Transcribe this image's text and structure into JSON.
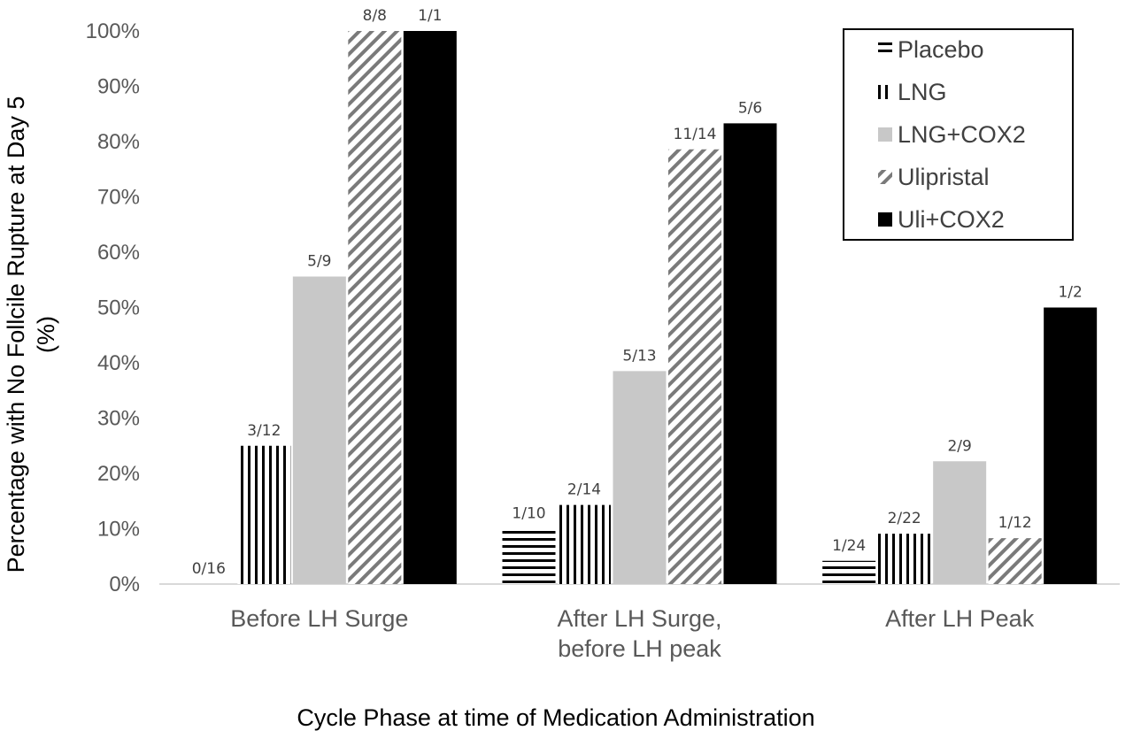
{
  "chart_data": {
    "type": "bar",
    "title": "",
    "xlabel": "Cycle Phase at time of Medication Administration",
    "ylabel_lines": [
      "Percentage  with No Follcile Rupture at Day 5",
      "(%)"
    ],
    "ylim": [
      0,
      100
    ],
    "yticks": [
      {
        "value": 0,
        "label": "0%"
      },
      {
        "value": 10,
        "label": "10%"
      },
      {
        "value": 20,
        "label": "20%"
      },
      {
        "value": 30,
        "label": "30%"
      },
      {
        "value": 40,
        "label": "40%"
      },
      {
        "value": 50,
        "label": "50%"
      },
      {
        "value": 60,
        "label": "60%"
      },
      {
        "value": 70,
        "label": "70%"
      },
      {
        "value": 80,
        "label": "80%"
      },
      {
        "value": 90,
        "label": "90%"
      },
      {
        "value": 100,
        "label": "100%"
      }
    ],
    "grid": false,
    "legend_position": "top-right",
    "categories": [
      [
        "Before LH Surge"
      ],
      [
        "After LH Surge,",
        "before LH peak"
      ],
      [
        "After LH Peak"
      ]
    ],
    "series": [
      {
        "name": "Placebo",
        "pattern": "horizontal-stripes",
        "color": "#000000",
        "values": [
          0,
          10,
          4.2
        ],
        "labels": [
          "0/16",
          "1/10",
          "1/24"
        ]
      },
      {
        "name": "LNG",
        "pattern": "vertical-stripes",
        "color": "#000000",
        "values": [
          25,
          14.3,
          9.1
        ],
        "labels": [
          "3/12",
          "2/14",
          "2/22"
        ]
      },
      {
        "name": "LNG+COX2",
        "pattern": "solid",
        "color": "#c8c8c8",
        "values": [
          55.6,
          38.5,
          22.2
        ],
        "labels": [
          "5/9",
          "5/13",
          "2/9"
        ]
      },
      {
        "name": "Ulipristal",
        "pattern": "diagonal-stripes",
        "color": "#7a7a7a",
        "values": [
          100,
          78.6,
          8.3
        ],
        "labels": [
          "8/8",
          "11/14",
          "1/12"
        ]
      },
      {
        "name": "Uli+COX2",
        "pattern": "solid",
        "color": "#000000",
        "values": [
          100,
          83.3,
          50
        ],
        "labels": [
          "1/1",
          "5/6",
          "1/2"
        ]
      }
    ]
  }
}
